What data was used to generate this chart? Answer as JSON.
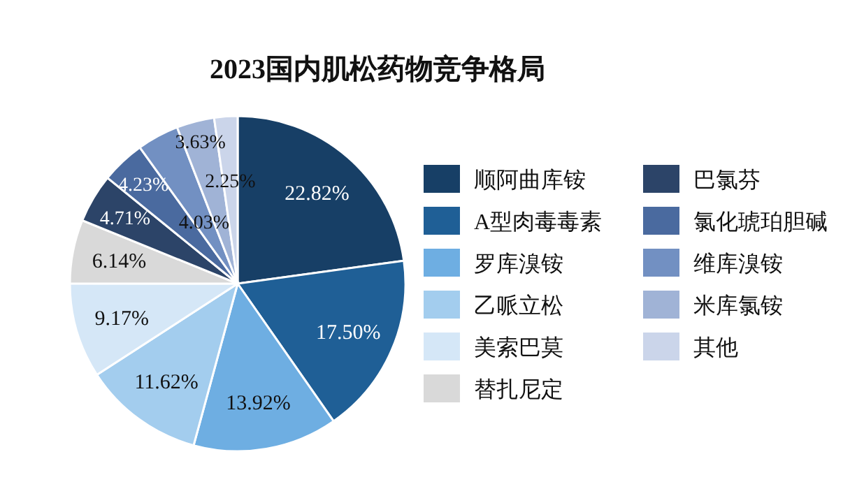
{
  "chart_data": {
    "type": "pie",
    "title": "2023国内肌松药物竞争格局",
    "categories": [
      "顺阿曲库铵",
      "A型肉毒毒素",
      "罗库溴铵",
      "乙哌立松",
      "美索巴莫",
      "替扎尼定",
      "巴氯芬",
      "氯化琥珀胆碱",
      "维库溴铵",
      "米库氯铵",
      "其他"
    ],
    "values": [
      22.82,
      17.5,
      13.92,
      11.62,
      9.17,
      6.14,
      4.71,
      4.23,
      4.03,
      3.63,
      2.25
    ],
    "colors": [
      "#173f66",
      "#1f5f96",
      "#6eaee2",
      "#a3cdee",
      "#d5e7f7",
      "#d9d9d9",
      "#2c4468",
      "#4a6a9f",
      "#7290c2",
      "#a0b3d6",
      "#cbd5ea"
    ],
    "value_labels": [
      "22.82%",
      "17.50%",
      "13.92%",
      "11.62%",
      "9.17%",
      "6.14%",
      "4.71%",
      "4.23%",
      "4.03%",
      "3.63%",
      "2.25%"
    ],
    "legend": "right"
  }
}
